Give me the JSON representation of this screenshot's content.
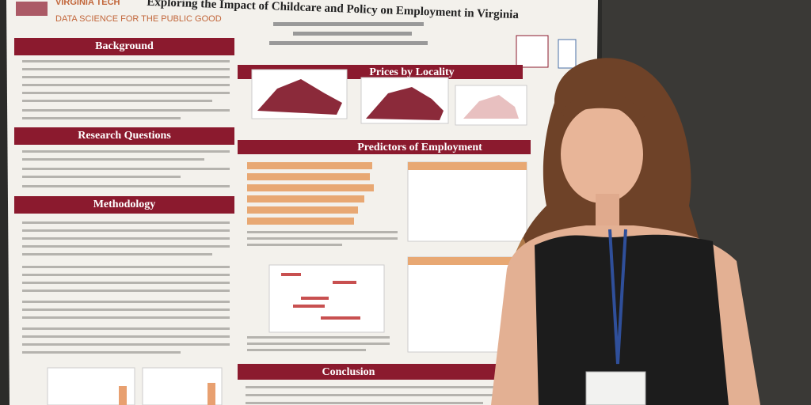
{
  "poster": {
    "logo": "VIRGINIA TECH",
    "tagline": "DATA SCIENCE FOR THE PUBLIC GOOD",
    "title": "Exploring the Impact of Childcare and Policy on Employment in Virginia",
    "sections": [
      "Background",
      "Research Questions",
      "Methodology",
      "Prices by Locality",
      "Predictors of Employment",
      "Conclusion"
    ]
  }
}
